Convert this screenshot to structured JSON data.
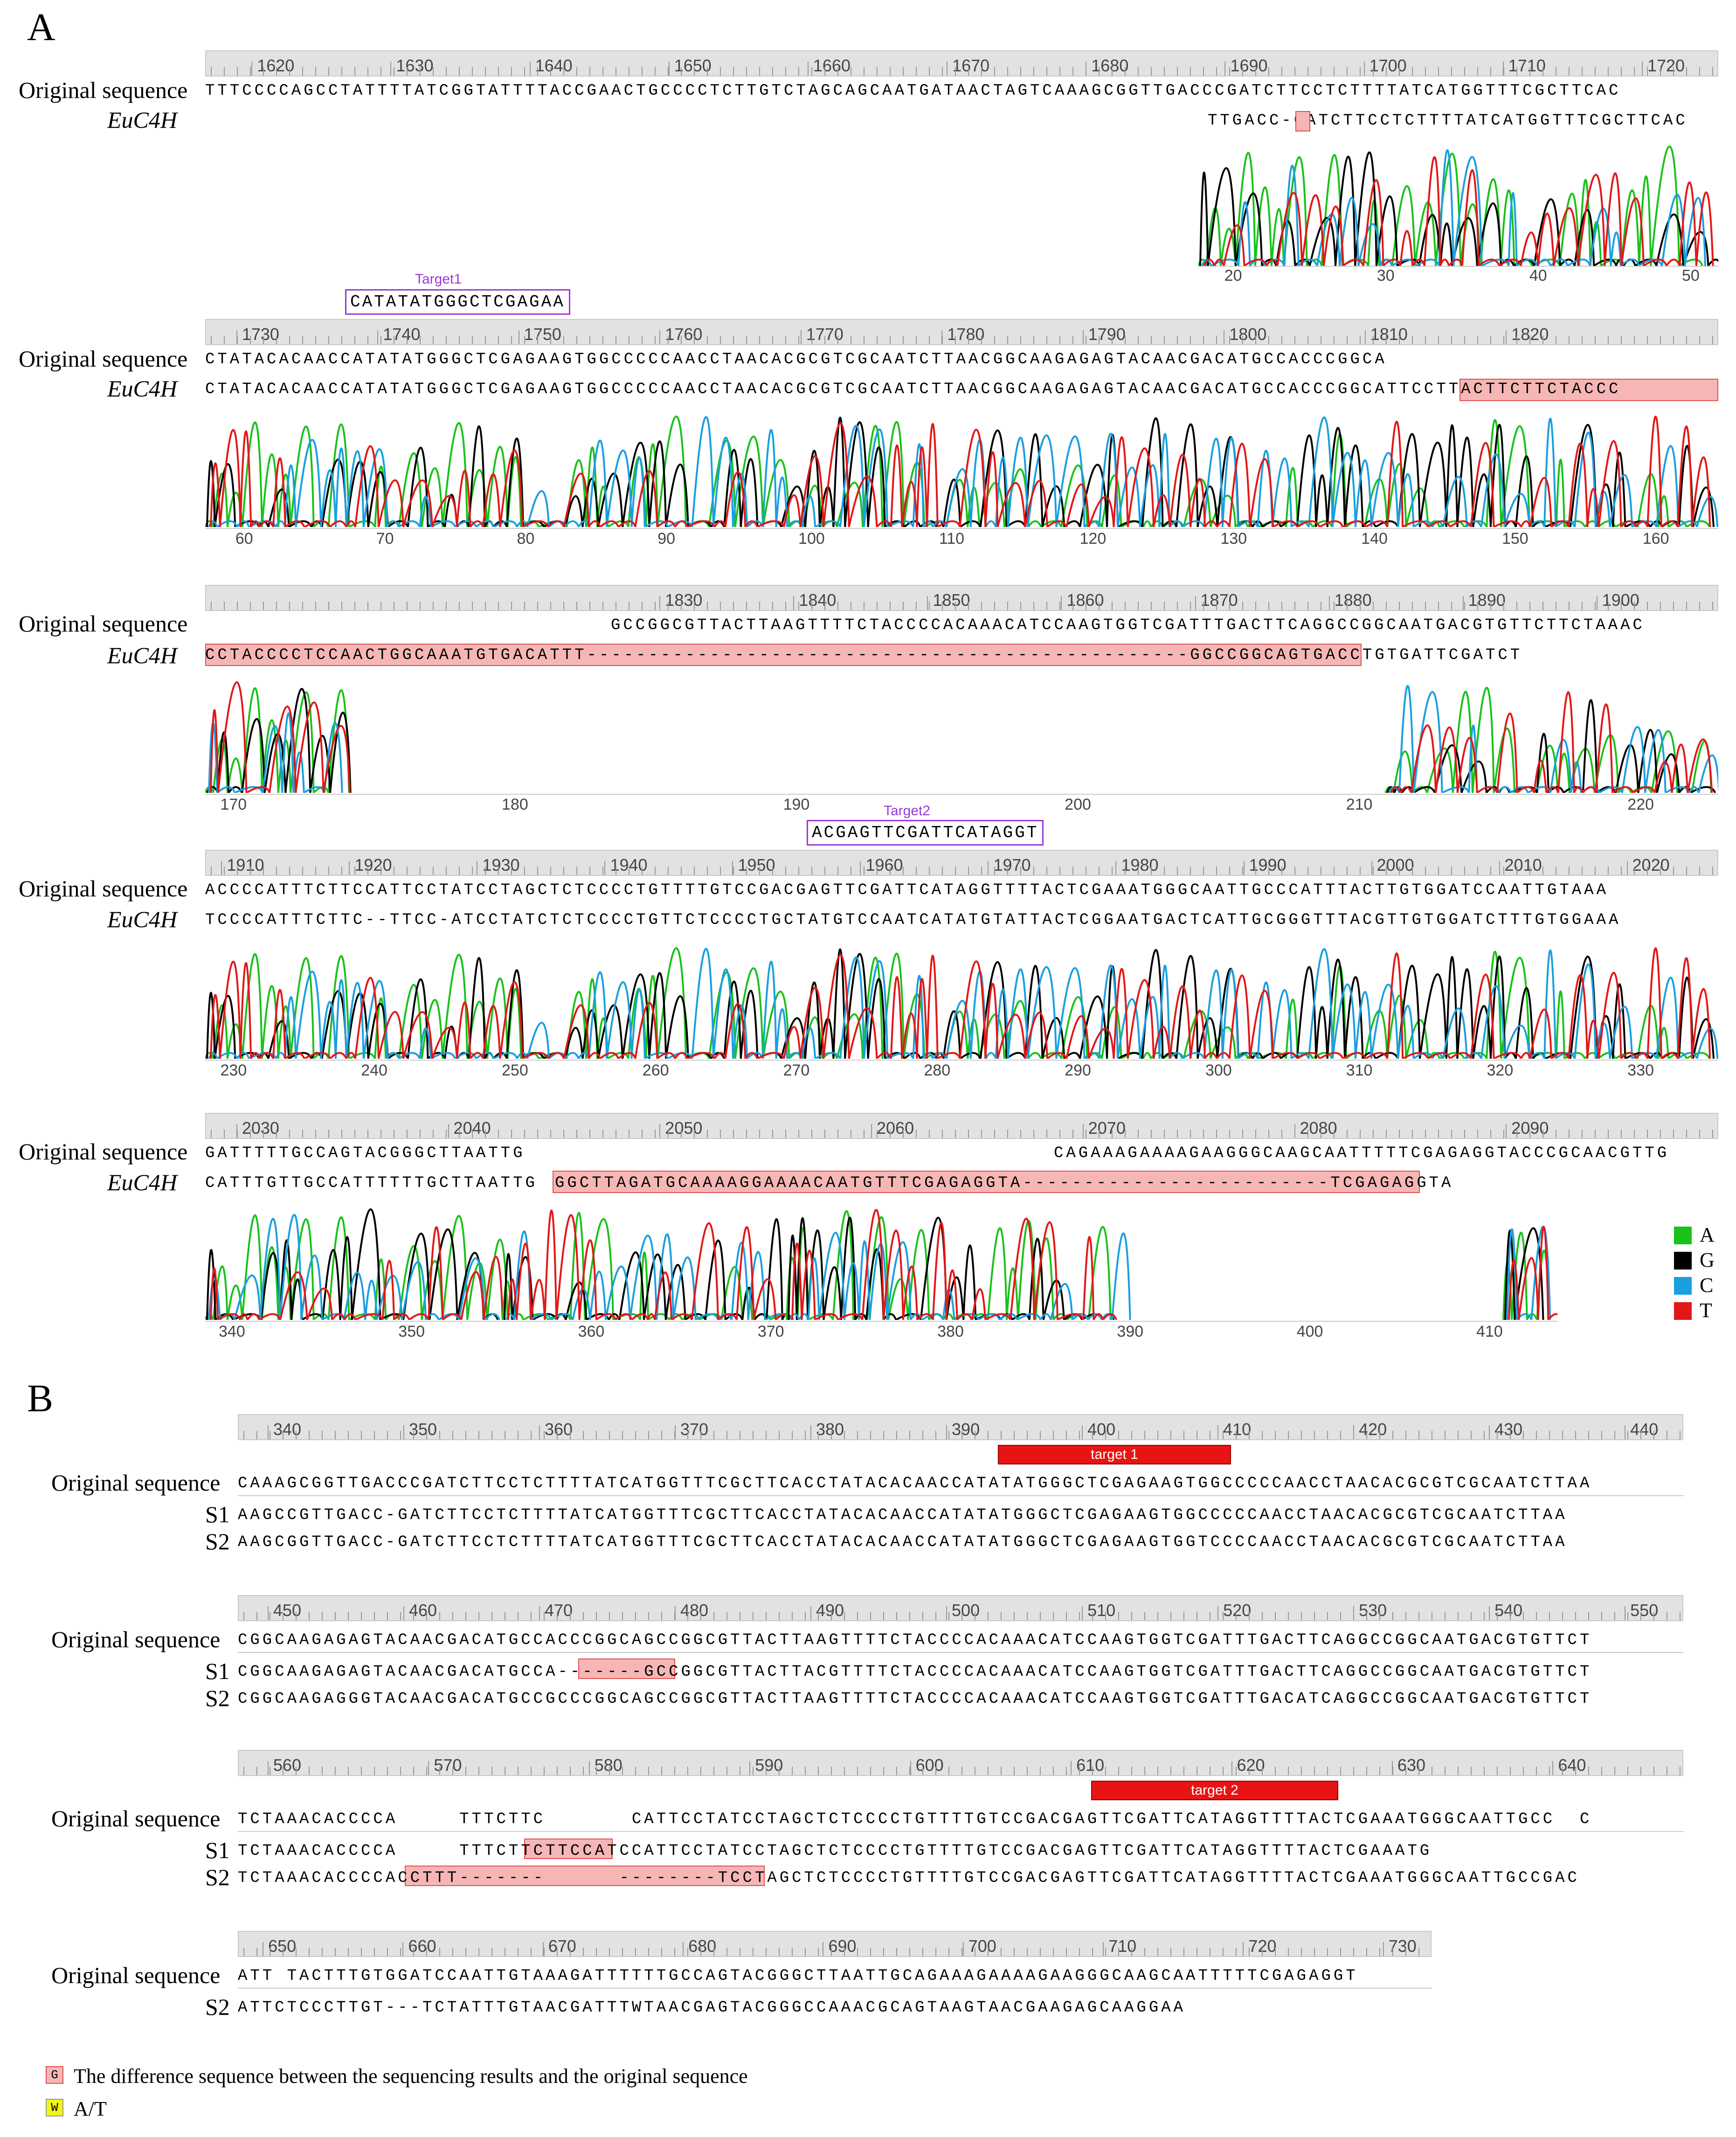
{
  "panelA": {
    "letter": "A",
    "original_label": "Original sequence",
    "gene_label": "EuC4H",
    "rows": [
      {
        "ruler": [
          "1620",
          "1630",
          "1640",
          "1650",
          "1660",
          "1670",
          "1680",
          "1690",
          "1700",
          "1710",
          "1720"
        ],
        "original": "TTTCCCCAGCCTATTTTATCGGTATTTTACCGAACTGCCCCTCTTGTCTAGCAGCAATGATAACTAGTCAAAGCGGTTGACCCGATCTTCCTCTTTTATCATGGTTTCGCTTCAC",
        "sample": "TTGACC-GATCTTCCTCTTTTATCATGGTTTCGCTTCAC",
        "axis": [
          "20",
          "30",
          "40",
          "50"
        ]
      },
      {
        "target_label": "Target1",
        "target_seq": "CATATATGGGCTCGAGAA",
        "ruler": [
          "1730",
          "1740",
          "1750",
          "1760",
          "1770",
          "1780",
          "1790",
          "1800",
          "1810",
          "1820"
        ],
        "original": "CTATACACAACCATATATGGGCTCGAGAAGTGGCCCCCAACCTAACACGCGTCGCAATCTTAACGGCAAGAGAGTACAACGACATGCCACCCGGCA",
        "sample": "CTATACACAACCATATATGGGCTCGAGAAGTGGCCCCCAACCTAACACGCGTCGCAATCTTAACGGCAAGAGAGTACAACGACATGCCACCCGGCATTCCTTACTTCTTCTACCC",
        "axis": [
          "60",
          "70",
          "80",
          "90",
          "100",
          "110",
          "120",
          "130",
          "140",
          "150",
          "160"
        ]
      },
      {
        "ruler": [
          "1830",
          "1840",
          "1850",
          "1860",
          "1870",
          "1880",
          "1890",
          "1900"
        ],
        "original": "GCCGGCGTTACTTAAGTTTTCTACCCCACAAACATCCAAGTGGTCGATTTGACTTCAGGCCGGCAATGACGTGTTCTTCTAAAC",
        "sample": "CCTACCCCTCCAACTGGCAAATGTGACATTT-------------------------------------------------GGCCGGCAGTGACCTGTGATTCGATCT",
        "axis": [
          "170",
          "180",
          "190",
          "200",
          "210",
          "220"
        ]
      },
      {
        "target_label": "Target2",
        "target_seq": "ACGAGTTCGATTCATAGGT",
        "ruler": [
          "1910",
          "1920",
          "1930",
          "1940",
          "1950",
          "1960",
          "1970",
          "1980",
          "1990",
          "2000",
          "2010",
          "2020"
        ],
        "original": "ACCCCATTTCTTCCATTCCTATCCTAGCTCTCCCCTGTTTTGTCCGACGAGTTCGATTCATAGGTTTTACTCGAAATGGGCAATTGCCCATTTACTTGTGGATCCAATTGTAAA",
        "sample": "TCCCCATTTCTTC--TTCC-ATCCTATCTCTCCCCTGTTCTCCCCTGCTATGTCCAATCATATGTATTACTCGGAATGACTCATTGCGGGTTTACGTTGTGGATCTTTGTGGAAA",
        "axis": [
          "230",
          "240",
          "250",
          "260",
          "270",
          "280",
          "290",
          "300",
          "310",
          "320",
          "330"
        ]
      },
      {
        "ruler": [
          "2030",
          "2040",
          "2050",
          "2060",
          "2070",
          "2080",
          "2090"
        ],
        "original_a": "GATTTTTGCCAGTACGGGCTTAATTG",
        "original_b": "CAGAAAGAAAAGAAGGGCAAGCAATTTTTCGAGAGGTACCCGCAACGTTG",
        "sample_a": "CATTTGTTGCCATTTTTTGCTTAATTG",
        "sample_b": "GGCTTAGATGCAAAAGGAAAACAATGTTTCGAGAGGTA-------------------------TCGAGAGGTA",
        "axis": [
          "340",
          "350",
          "360",
          "370",
          "380",
          "390",
          "400",
          "410"
        ]
      }
    ],
    "base_legend": [
      {
        "base": "A",
        "color": "#19c219"
      },
      {
        "base": "G",
        "color": "#000000"
      },
      {
        "base": "C",
        "color": "#1a9fe0"
      },
      {
        "base": "T",
        "color": "#e21818"
      }
    ]
  },
  "panelB": {
    "letter": "B",
    "original_label": "Original sequence",
    "blocks": [
      {
        "ruler": [
          "340",
          "350",
          "360",
          "370",
          "380",
          "390",
          "400",
          "410",
          "420",
          "430",
          "440"
        ],
        "bar": "target 1",
        "original": "CAAAGCGGTTGACCCGATCTTCCTCTTTTATCATGGTTTCGCTTCACCTATACACAACCATATATGGGCTCGAGAAGTGGCCCCCAACCTAACACGCGTCGCAATCTTAA",
        "rows": [
          {
            "label": "S1",
            "seq": "AAGCCGTTGACC-GATCTTCCTCTTTTATCATGGTTTCGCTTCACCTATACACAACCATATATGGGCTCGAGAAGTGGCCCCCAACCTAACACGCGTCGCAATCTTAA"
          },
          {
            "label": "S2",
            "seq": "AAGCGGTTGACC-GATCTTCCTCTTTTATCATGGTTTCGCTTCACCTATACACAACCATATATGGGCTCGAGAAGTGGTCCCCAACCTAACACGCGTCGCAATCTTAA"
          }
        ]
      },
      {
        "ruler": [
          "450",
          "460",
          "470",
          "480",
          "490",
          "500",
          "510",
          "520",
          "530",
          "540",
          "550"
        ],
        "original": "CGGCAAGAGAGTACAACGACATGCCACCCGGCAGCCGGCGTTACTTAAGTTTTCTACCCCACAAACATCCAAGTGGTCGATTTGACTTCAGGCCGGCAATGACGTGTTCT",
        "rows": [
          {
            "label": "S1",
            "seq": "CGGCAAGAGAGTACAACGACATGCCA-------GCCGGCGTTACTTACGTTTTCTACCCCACAAACATCCAAGTGGTCGATTTGACTTCAGGCCGGCAATGACGTGTTCT"
          },
          {
            "label": "S2",
            "seq": "CGGCAAGAGGGTACAACGACATGCCGCCCGGCAGCCGGCGTTACTTAAGTTTTCTACCCCACAAACATCCAAGTGGTCGATTTGACATCAGGCCGGCAATGACGTGTTCT"
          }
        ]
      },
      {
        "ruler": [
          "560",
          "570",
          "580",
          "590",
          "600",
          "610",
          "620",
          "630",
          "640"
        ],
        "bar": "target 2",
        "original": "TCTAAACACCCCA     TTTCTTC       CATTCCTATCCTAGCTCTCCCCTGTTTTGTCCGACGAGTTCGATTCATAGGTTTTACTCGAAATGGGCAATTGCC  C",
        "rows": [
          {
            "label": "S1",
            "seq": "TCTAAACACCCCA     TTTCTTCTTCCATCCATTCCTATCCTAGCTCTCCCCTGTTTTGTCCGACGAGTTCGATTCATAGGTTTTACTCGAAATG"
          },
          {
            "label": "S2",
            "seq": "TCTAAACACCCCACCTTT-------      --------TCCTAGCTCTCCCCTGTTTTGTCCGACGAGTTCGATTCATAGGTTTTACTCGAAATGGGCAATTGCCGAC"
          }
        ]
      },
      {
        "ruler": [
          "650",
          "660",
          "670",
          "680",
          "690",
          "700",
          "710",
          "720",
          "730"
        ],
        "original": "ATT TACTTTGTGGATCCAATTGTAAAGATTTTTTGCCAGTACGGGCTTAATTGCAGAAAGAAAAGAAGGGCAAGCAATTTTTCGAGAGGT",
        "rows": [
          {
            "label": "S2",
            "seq": "ATTCTCCCTTGT---TCTATTTGTAACGATTTWTAACGAGTACGGGCCAAACGCAGTAAGTAACGAAGAGCAAGGAA"
          }
        ]
      }
    ],
    "legend": [
      {
        "glyph": "G",
        "text": "The difference sequence between the sequencing results and the original sequence",
        "color": "#f6b6b6"
      },
      {
        "glyph": "W",
        "text": "A/T",
        "color": "#f4f416"
      }
    ]
  }
}
